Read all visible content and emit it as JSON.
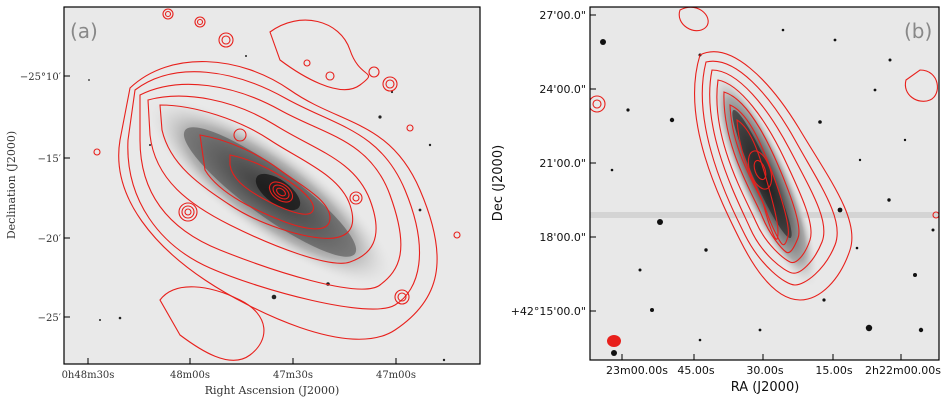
{
  "panels": [
    {
      "label": "(a)",
      "xlabel": "Right Ascension (J2000)",
      "ylabel": "Declination (J2000)",
      "xticks": [
        "0h48m30s",
        "48m00s",
        "47m30s",
        "47m00s"
      ],
      "yticks": [
        "−25°10′",
        "−15′",
        "−20′",
        "−25′"
      ]
    },
    {
      "label": "(b)",
      "xlabel": "RA (J2000)",
      "ylabel": "Dec (J2000)",
      "xticks": [
        "23m00.00s",
        "45.00s",
        "30.00s",
        "15.00s",
        "2h22m00.00s"
      ],
      "yticks": [
        "27'00.0\"",
        "24'00.0\"",
        "21'00.0\"",
        "18'00.0\"",
        "+42°15'00.0\""
      ]
    }
  ],
  "colors": {
    "contour": "#e8201c",
    "sky": "#e9e9e9",
    "axis": "#000000"
  }
}
